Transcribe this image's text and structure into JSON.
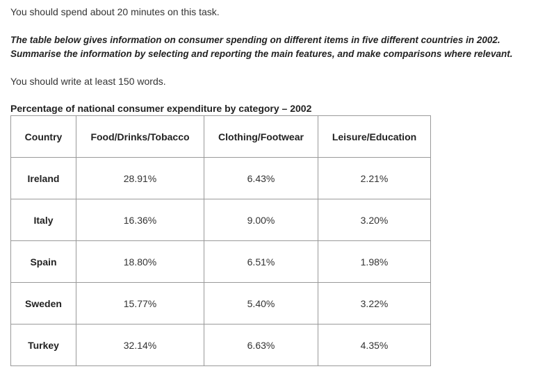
{
  "task": {
    "time_line": "You should spend about 20 minutes on this task.",
    "instruction_line1": "The table below gives information on consumer spending on different items in five different countries in 2002.",
    "instruction_line2": "Summarise the information by selecting and reporting the main features, and make comparisons where relevant.",
    "word_line": "You should write at least 150 words."
  },
  "table": {
    "title": "Percentage of national consumer expenditure by category – 2002",
    "headers": [
      "Country",
      "Food/Drinks/Tobacco",
      "Clothing/Footwear",
      "Leisure/Education"
    ],
    "rows": [
      [
        "Ireland",
        "28.91%",
        "6.43%",
        "2.21%"
      ],
      [
        "Italy",
        "16.36%",
        "9.00%",
        "3.20%"
      ],
      [
        "Spain",
        "18.80%",
        "6.51%",
        "1.98%"
      ],
      [
        "Sweden",
        "15.77%",
        "5.40%",
        "3.22%"
      ],
      [
        "Turkey",
        "32.14%",
        "6.63%",
        "4.35%"
      ]
    ]
  }
}
